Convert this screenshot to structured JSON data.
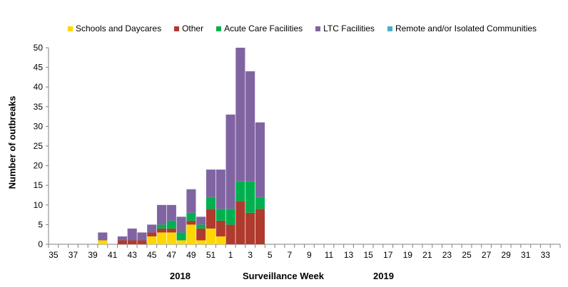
{
  "chart_data": {
    "type": "bar",
    "stacked": true,
    "xlabel": "Surveillance Week",
    "ylabel": "Number of outbreaks",
    "ylim": [
      0,
      50
    ],
    "yticks": [
      0,
      5,
      10,
      15,
      20,
      25,
      30,
      35,
      40,
      45,
      50
    ],
    "grid": false,
    "legend_position": "top",
    "year_labels": [
      "2018",
      "2019"
    ],
    "categories": [
      "35",
      "36",
      "37",
      "38",
      "39",
      "40",
      "41",
      "42",
      "43",
      "44",
      "45",
      "46",
      "47",
      "48",
      "49",
      "50",
      "51",
      "52",
      "1",
      "2",
      "3",
      "4",
      "5",
      "6",
      "7",
      "8",
      "9",
      "10",
      "11",
      "12",
      "13",
      "14",
      "15",
      "16",
      "17",
      "18",
      "19",
      "20",
      "21",
      "22",
      "23",
      "24",
      "25",
      "26",
      "27",
      "28",
      "29",
      "30",
      "31",
      "32",
      "33",
      "34"
    ],
    "x_tick_labels": [
      "35",
      "37",
      "39",
      "41",
      "43",
      "45",
      "47",
      "49",
      "51",
      "1",
      "3",
      "5",
      "7",
      "9",
      "11",
      "13",
      "15",
      "17",
      "19",
      "21",
      "23",
      "25",
      "27",
      "29",
      "31",
      "33"
    ],
    "series": [
      {
        "name": "Schools and Daycares",
        "color": "#FFD700",
        "values": [
          0,
          0,
          0,
          0,
          0,
          1,
          0,
          0,
          0,
          0,
          2,
          3,
          3,
          1,
          5,
          1,
          4,
          2,
          0,
          0,
          0,
          0,
          0,
          0,
          0,
          0,
          0,
          0,
          0,
          0,
          0,
          0,
          0,
          0,
          0,
          0,
          0,
          0,
          0,
          0,
          0,
          0,
          0,
          0,
          0,
          0,
          0,
          0,
          0,
          0,
          0,
          0
        ]
      },
      {
        "name": "Other",
        "color": "#B03A2E",
        "values": [
          0,
          0,
          0,
          0,
          0,
          0,
          0,
          1,
          1,
          1,
          1,
          1,
          1,
          0,
          1,
          3,
          5,
          4,
          5,
          11,
          8,
          9,
          0,
          0,
          0,
          0,
          0,
          0,
          0,
          0,
          0,
          0,
          0,
          0,
          0,
          0,
          0,
          0,
          0,
          0,
          0,
          0,
          0,
          0,
          0,
          0,
          0,
          0,
          0,
          0,
          0,
          0
        ]
      },
      {
        "name": "Acute Care Facilities",
        "color": "#00B050",
        "values": [
          0,
          0,
          0,
          0,
          0,
          0,
          0,
          0,
          0,
          0,
          0,
          1,
          2,
          2,
          2,
          1,
          3,
          3,
          4,
          5,
          8,
          3,
          0,
          0,
          0,
          0,
          0,
          0,
          0,
          0,
          0,
          0,
          0,
          0,
          0,
          0,
          0,
          0,
          0,
          0,
          0,
          0,
          0,
          0,
          0,
          0,
          0,
          0,
          0,
          0,
          0,
          0
        ]
      },
      {
        "name": "LTC Facilities",
        "color": "#8064A2",
        "values": [
          0,
          0,
          0,
          0,
          0,
          2,
          0,
          1,
          3,
          2,
          2,
          5,
          4,
          4,
          6,
          2,
          7,
          10,
          24,
          34,
          28,
          19,
          0,
          0,
          0,
          0,
          0,
          0,
          0,
          0,
          0,
          0,
          0,
          0,
          0,
          0,
          0,
          0,
          0,
          0,
          0,
          0,
          0,
          0,
          0,
          0,
          0,
          0,
          0,
          0,
          0,
          0
        ]
      },
      {
        "name": "Remote and/or Isolated Communities",
        "color": "#4BACC6",
        "values": [
          0,
          0,
          0,
          0,
          0,
          0,
          0,
          0,
          0,
          0,
          0,
          0,
          0,
          0,
          0,
          0,
          0,
          0,
          0,
          0,
          0,
          0,
          0,
          0,
          0,
          0,
          0,
          0,
          0,
          0,
          0,
          0,
          0,
          0,
          0,
          0,
          0,
          0,
          0,
          0,
          0,
          0,
          0,
          0,
          0,
          0,
          0,
          0,
          0,
          0,
          0,
          0
        ]
      }
    ]
  }
}
